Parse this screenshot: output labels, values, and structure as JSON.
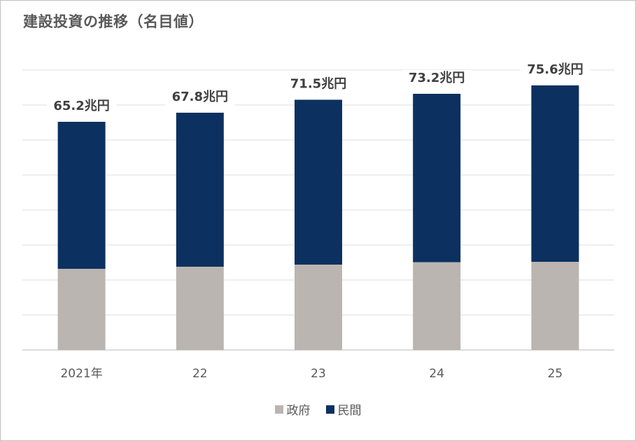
{
  "title": "建設投資の推移（名目値）",
  "chart_data": {
    "type": "bar",
    "stacked": true,
    "title": "建設投資の推移（名目値）",
    "categories": [
      "2021年",
      "22",
      "23",
      "24",
      "25"
    ],
    "series": [
      {
        "name": "政府",
        "values": [
          23.2,
          23.8,
          24.4,
          25.1,
          25.2
        ],
        "color": "#bab5b0"
      },
      {
        "name": "民間",
        "values": [
          42.0,
          44.0,
          47.1,
          48.1,
          50.4
        ],
        "color": "#0c305f"
      }
    ],
    "totals": [
      65.2,
      67.8,
      71.5,
      73.2,
      75.6
    ],
    "total_labels": [
      "65.2兆円",
      "67.8兆円",
      "71.5兆円",
      "73.2兆円",
      "75.6兆円"
    ],
    "ylim": [
      0,
      80
    ],
    "grid": true,
    "legend_position": "bottom"
  }
}
